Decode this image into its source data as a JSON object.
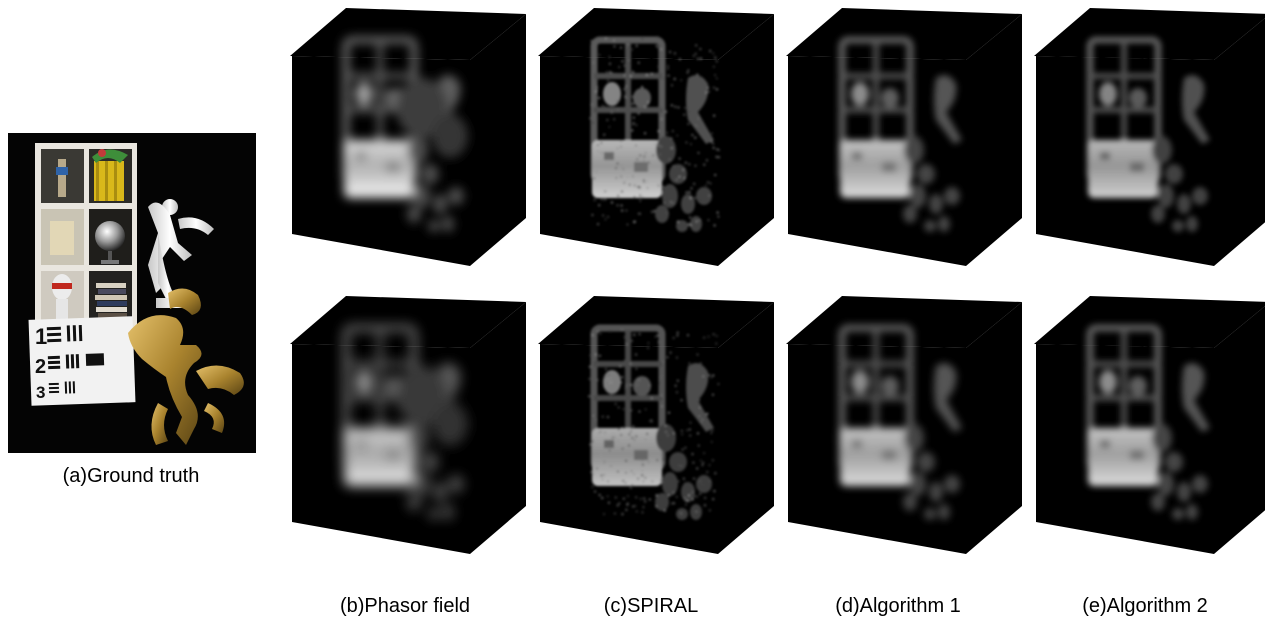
{
  "figure": {
    "captions": {
      "ground_truth": "(a)Ground truth",
      "phasor_field": "(b)Phasor field",
      "spiral": "(c)SPIRAL",
      "algorithm1": "(d)Algorithm 1",
      "algorithm2": "(e)Algorithm 2"
    },
    "ground_truth_labels": [
      "1",
      "2",
      "3"
    ]
  }
}
